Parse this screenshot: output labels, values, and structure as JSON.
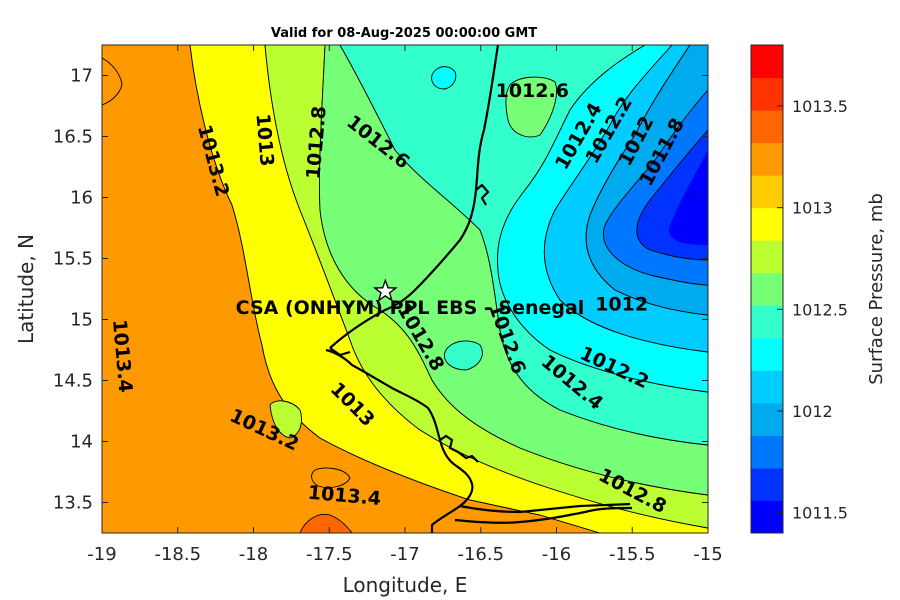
{
  "title": "Valid for 08-Aug-2025 00:00:00 GMT",
  "site_label": "CSA (ONHYM) PPL EBS  - Senegal",
  "site_lon": -17.13,
  "site_lat": 15.23,
  "xlabel": "Longitude, E",
  "ylabel": "Latitude, N",
  "xlim": [
    -19,
    -15
  ],
  "ylim": [
    13.25,
    17.25
  ],
  "xticks": [
    -19,
    -18.5,
    -18,
    -17.5,
    -17,
    -16.5,
    -16,
    -15.5,
    -15
  ],
  "yticks": [
    13.5,
    14,
    14.5,
    15,
    15.5,
    16,
    16.5,
    17
  ],
  "colorbar": {
    "label": "Surface Pressure, mb",
    "range": [
      1011.4,
      1013.8
    ],
    "ticks": [
      1011.5,
      1012,
      1012.5,
      1013,
      1013.5
    ],
    "colors": [
      "#0000ff",
      "#0033ff",
      "#0077ff",
      "#00aaee",
      "#00ccff",
      "#00ffff",
      "#33ffcc",
      "#77ff77",
      "#bbff33",
      "#ffff00",
      "#ffcc00",
      "#ff9900",
      "#ff6600",
      "#ff3300",
      "#ff0000"
    ]
  },
  "contour_labels": [
    {
      "text": "1013.2",
      "lon": -18.27,
      "lat": 16.3,
      "rot": 75
    },
    {
      "text": "1013",
      "lon": -17.93,
      "lat": 16.47,
      "rot": 85
    },
    {
      "text": "1012.8",
      "lon": -17.58,
      "lat": 16.45,
      "rot": -85
    },
    {
      "text": "1012.6",
      "lon": -17.18,
      "lat": 16.45,
      "rot": 38
    },
    {
      "text": "1012.6",
      "lon": -16.16,
      "lat": 16.87,
      "rot": 0
    },
    {
      "text": "1012.4",
      "lon": -15.85,
      "lat": 16.5,
      "rot": -60
    },
    {
      "text": "1012.2",
      "lon": -15.65,
      "lat": 16.55,
      "rot": -60
    },
    {
      "text": "1012",
      "lon": -15.47,
      "lat": 16.46,
      "rot": -62
    },
    {
      "text": "1011.8",
      "lon": -15.3,
      "lat": 16.37,
      "rot": -62
    },
    {
      "text": "1013.4",
      "lon": -18.87,
      "lat": 14.7,
      "rot": 85
    },
    {
      "text": "1012.8",
      "lon": -16.9,
      "lat": 14.85,
      "rot": 60
    },
    {
      "text": "1012.6",
      "lon": -16.33,
      "lat": 14.84,
      "rot": 70
    },
    {
      "text": "1012",
      "lon": -15.57,
      "lat": 15.12,
      "rot": 0
    },
    {
      "text": "1012.2",
      "lon": -15.62,
      "lat": 14.6,
      "rot": 25
    },
    {
      "text": "1012.4",
      "lon": -15.9,
      "lat": 14.48,
      "rot": 40
    },
    {
      "text": "1013",
      "lon": -17.35,
      "lat": 14.3,
      "rot": 45
    },
    {
      "text": "1013.2",
      "lon": -17.93,
      "lat": 14.09,
      "rot": 25
    },
    {
      "text": "1013.4",
      "lon": -17.4,
      "lat": 13.55,
      "rot": 5
    },
    {
      "text": "1012.8",
      "lon": -15.5,
      "lat": 13.59,
      "rot": 28
    }
  ]
}
